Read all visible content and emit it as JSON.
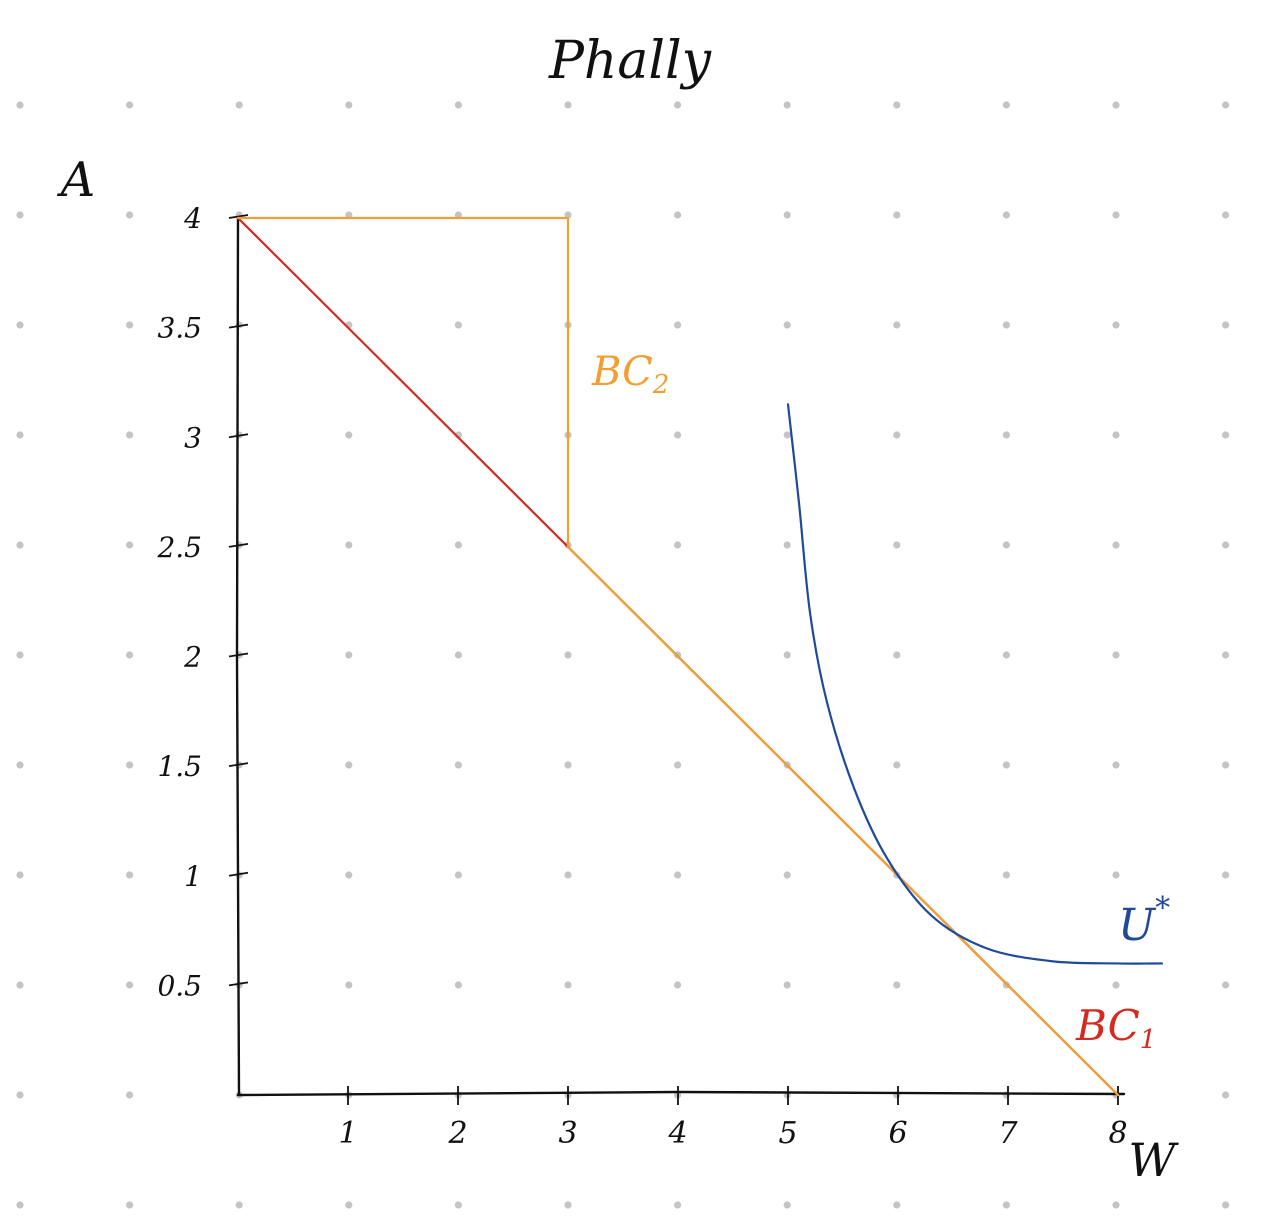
{
  "chart_data": {
    "type": "line",
    "title": "Phally",
    "xlabel": "W",
    "ylabel": "A",
    "xlim": [
      0,
      8
    ],
    "ylim": [
      0,
      4
    ],
    "x_ticks": [
      1,
      2,
      3,
      4,
      5,
      6,
      7,
      8
    ],
    "y_ticks": [
      0.5,
      1,
      1.5,
      2,
      2.5,
      3,
      3.5,
      4
    ],
    "x_tick_labels": [
      "1",
      "2",
      "3",
      "4",
      "5",
      "6",
      "7",
      "8"
    ],
    "y_tick_labels": [
      "0.5",
      "1",
      "1.5",
      "2",
      "2.5",
      "3",
      "3.5",
      "4"
    ],
    "dot_grid": true,
    "series": [
      {
        "name": "BC₁",
        "color": "#d42a22",
        "points": [
          [
            0,
            4
          ],
          [
            8,
            0
          ]
        ]
      },
      {
        "name": "BC₂",
        "color": "#f0a030",
        "points": [
          [
            0,
            4
          ],
          [
            3,
            4
          ],
          [
            3,
            2.5
          ],
          [
            8,
            0
          ]
        ]
      },
      {
        "name": "U*",
        "color": "#1f4a9a",
        "points": [
          [
            5.0,
            3.15
          ],
          [
            5.1,
            2.7
          ],
          [
            5.2,
            2.2
          ],
          [
            5.35,
            1.8
          ],
          [
            5.6,
            1.4
          ],
          [
            5.9,
            1.08
          ],
          [
            6.3,
            0.82
          ],
          [
            6.8,
            0.67
          ],
          [
            7.4,
            0.61
          ],
          [
            8.0,
            0.6
          ],
          [
            8.4,
            0.6
          ]
        ]
      }
    ]
  },
  "labels": {
    "bc1": "BC",
    "bc1_sub": "1",
    "bc2": "BC",
    "bc2_sub": "2",
    "u": "U",
    "u_sup": "*"
  }
}
